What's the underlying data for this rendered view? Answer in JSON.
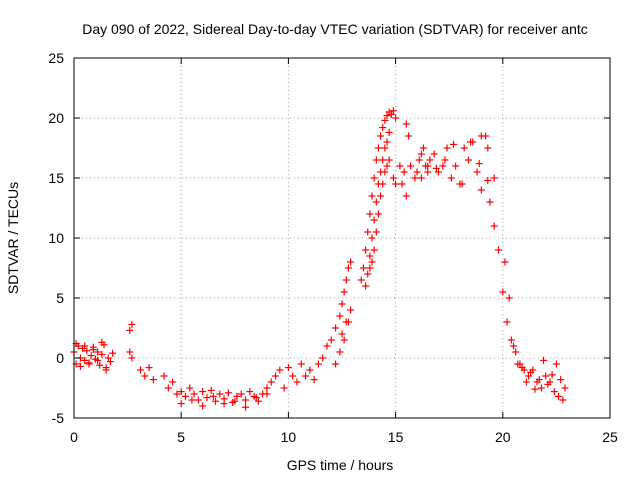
{
  "chart_data": {
    "type": "scatter",
    "title": "Day 090 of 2022, Sidereal Day-to-day VTEC variation (SDTVAR) for receiver antc",
    "xlabel": "GPS time / hours",
    "ylabel": "SDTVAR / TECUs",
    "xlim": [
      0,
      25
    ],
    "ylim": [
      -5,
      25
    ],
    "xticks": [
      0,
      5,
      10,
      15,
      20,
      25
    ],
    "yticks": [
      -5,
      0,
      5,
      10,
      15,
      20,
      25
    ],
    "grid": true,
    "marker": "plus",
    "color": "#ff0000",
    "series": [
      {
        "name": "SDTVAR",
        "x": [
          0.0,
          0.1,
          0.2,
          0.3,
          0.4,
          0.5,
          0.6,
          0.7,
          0.8,
          0.9,
          1.0,
          1.1,
          1.2,
          1.3,
          1.4,
          1.5,
          1.6,
          1.7,
          1.8,
          0.1,
          0.3,
          0.5,
          0.7,
          0.9,
          1.1,
          1.3,
          1.5,
          2.6,
          2.7,
          2.6,
          2.7,
          3.1,
          3.3,
          3.5,
          3.7,
          4.2,
          4.4,
          4.6,
          4.8,
          5.0,
          5.2,
          5.4,
          5.6,
          5.8,
          6.0,
          6.2,
          6.4,
          6.6,
          6.8,
          7.0,
          7.2,
          7.4,
          7.6,
          7.8,
          8.0,
          8.2,
          8.4,
          8.6,
          8.8,
          9.0,
          5.0,
          5.5,
          6.0,
          6.5,
          7.0,
          7.5,
          8.0,
          8.5,
          9.0,
          9.2,
          9.4,
          9.6,
          9.8,
          10.0,
          10.2,
          10.4,
          10.6,
          10.8,
          11.0,
          11.2,
          11.4,
          11.6,
          11.8,
          12.0,
          12.2,
          12.4,
          12.5,
          12.6,
          12.7,
          12.8,
          12.9,
          12.2,
          12.4,
          12.6,
          12.8,
          12.5,
          12.7,
          12.9,
          13.4,
          13.5,
          13.6,
          13.7,
          13.8,
          13.9,
          14.0,
          14.1,
          14.2,
          14.3,
          14.4,
          14.5,
          14.6,
          14.7,
          14.8,
          14.9,
          15.0,
          13.6,
          13.7,
          13.8,
          13.9,
          14.0,
          14.1,
          14.2,
          14.3,
          14.4,
          14.5,
          14.6,
          14.7,
          13.8,
          13.9,
          14.0,
          14.1,
          14.2,
          14.3,
          14.4,
          14.5,
          14.6,
          14.7,
          14.9,
          15.0,
          15.2,
          15.4,
          15.5,
          15.6,
          15.3,
          15.5,
          15.7,
          15.9,
          16.0,
          16.1,
          16.2,
          16.3,
          16.4,
          16.5,
          16.6,
          16.8,
          17.0,
          17.2,
          17.4,
          17.6,
          17.8,
          18.0,
          18.2,
          18.4,
          18.6,
          18.8,
          19.0,
          19.2,
          19.4,
          19.6,
          19.8,
          20.0,
          20.2,
          20.4,
          20.6,
          20.8,
          21.0,
          21.2,
          21.4,
          21.6,
          21.8,
          22.0,
          22.2,
          22.4,
          22.6,
          22.8,
          19.0,
          19.3,
          19.6,
          20.1,
          20.3,
          20.5,
          20.7,
          20.9,
          21.1,
          21.3,
          21.5,
          21.7,
          21.9,
          22.1,
          22.3,
          22.5,
          22.7,
          22.9,
          16.2,
          16.5,
          16.9,
          17.3,
          17.7,
          18.1,
          18.5,
          18.9,
          19.3
        ],
        "y": [
          0.5,
          -0.5,
          1.0,
          0.0,
          0.8,
          -0.2,
          0.6,
          -0.4,
          0.2,
          0.9,
          -0.1,
          0.5,
          -0.6,
          0.3,
          1.1,
          -0.8,
          0.0,
          -0.3,
          0.4,
          1.2,
          -0.7,
          1.0,
          -0.5,
          0.7,
          -0.2,
          1.3,
          -1.0,
          2.3,
          2.8,
          0.5,
          0.0,
          -1.0,
          -1.5,
          -0.8,
          -1.8,
          -1.5,
          -2.5,
          -2.0,
          -3.0,
          -2.8,
          -3.2,
          -2.5,
          -3.0,
          -3.5,
          -2.8,
          -3.3,
          -2.7,
          -3.6,
          -3.0,
          -3.4,
          -2.9,
          -3.7,
          -3.2,
          -3.0,
          -3.5,
          -2.8,
          -3.2,
          -3.6,
          -3.0,
          -2.5,
          -3.8,
          -3.5,
          -4.0,
          -3.2,
          -3.8,
          -3.6,
          -4.1,
          -3.3,
          -3.0,
          -2.0,
          -1.5,
          -1.0,
          -2.5,
          -0.8,
          -1.5,
          -2.0,
          -0.5,
          -1.5,
          -1.0,
          -1.8,
          -0.5,
          0.0,
          1.0,
          1.5,
          2.5,
          3.5,
          4.5,
          5.5,
          6.5,
          7.5,
          8.0,
          -0.5,
          0.5,
          1.5,
          3.0,
          2.0,
          3.0,
          4.0,
          6.5,
          7.5,
          9.0,
          10.5,
          12.0,
          13.5,
          15.0,
          16.5,
          17.5,
          18.5,
          19.2,
          19.8,
          20.2,
          20.5,
          20.3,
          20.6,
          20.0,
          6.0,
          7.0,
          8.5,
          10.0,
          11.5,
          13.0,
          14.5,
          15.5,
          16.5,
          17.5,
          18.0,
          18.8,
          7.5,
          8.0,
          9.0,
          10.5,
          12.0,
          13.5,
          14.5,
          15.5,
          16.0,
          16.5,
          15.0,
          14.5,
          16.0,
          15.5,
          19.5,
          18.5,
          14.5,
          13.5,
          16.0,
          15.0,
          15.5,
          16.5,
          15.0,
          17.5,
          16.0,
          15.5,
          16.5,
          17.0,
          15.5,
          16.0,
          17.5,
          15.0,
          16.0,
          14.5,
          17.5,
          16.5,
          18.0,
          15.5,
          14.0,
          18.5,
          13.0,
          11.0,
          9.0,
          5.5,
          3.0,
          1.5,
          0.5,
          -0.5,
          -1.0,
          -1.5,
          -1.0,
          -2.0,
          -2.5,
          -1.5,
          -2.0,
          -2.8,
          -3.2,
          -3.5,
          18.5,
          17.5,
          15.0,
          8.0,
          5.0,
          1.0,
          -0.5,
          -0.8,
          -2.0,
          -1.2,
          -2.6,
          -1.8,
          -0.2,
          -2.2,
          -1.4,
          -0.5,
          -1.8,
          -2.5,
          17.0,
          16.0,
          15.8,
          16.5,
          17.8,
          14.5,
          18.0,
          16.2,
          14.8
        ]
      }
    ]
  }
}
